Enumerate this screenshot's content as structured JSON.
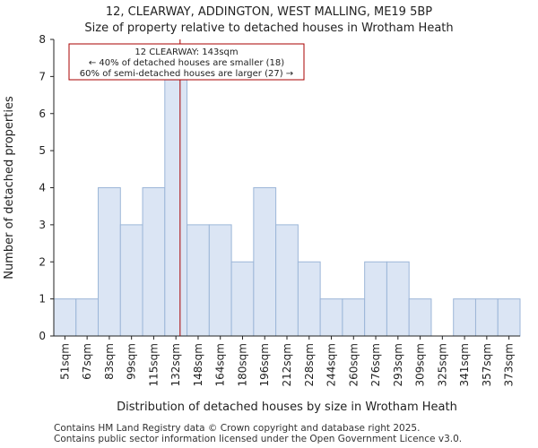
{
  "chart_data": {
    "type": "bar",
    "title_line1": "12, CLEARWAY, ADDINGTON, WEST MALLING, ME19 5BP",
    "title_line2": "Size of property relative to detached houses in Wrotham Heath",
    "xlabel": "Distribution of detached houses by size in Wrotham Heath",
    "ylabel": "Number of detached properties",
    "categories": [
      "51sqm",
      "67sqm",
      "83sqm",
      "99sqm",
      "115sqm",
      "132sqm",
      "148sqm",
      "164sqm",
      "180sqm",
      "196sqm",
      "212sqm",
      "228sqm",
      "244sqm",
      "260sqm",
      "276sqm",
      "293sqm",
      "309sqm",
      "325sqm",
      "341sqm",
      "357sqm",
      "373sqm"
    ],
    "bin_edges": [
      51,
      67,
      83,
      99,
      115,
      132,
      148,
      164,
      180,
      196,
      212,
      228,
      244,
      260,
      276,
      293,
      309,
      325,
      341,
      357,
      373,
      389
    ],
    "values": [
      1,
      1,
      4,
      3,
      4,
      7,
      3,
      3,
      2,
      4,
      3,
      2,
      1,
      1,
      2,
      2,
      1,
      0,
      1,
      1,
      1
    ],
    "ylim": [
      0,
      8
    ],
    "yticks": [
      0,
      1,
      2,
      3,
      4,
      5,
      6,
      7,
      8
    ],
    "marker_value": 143,
    "bar_fill": "#dbe5f4",
    "bar_edge": "#9cb6d8",
    "marker_color": "#aa0000",
    "annotation": {
      "line1": "12 CLEARWAY: 143sqm",
      "line2": "← 40% of detached houses are smaller (18)",
      "line3": "60% of semi-detached houses are larger (27) →"
    }
  },
  "footer": {
    "line1": "Contains HM Land Registry data © Crown copyright and database right 2025.",
    "line2": "Contains public sector information licensed under the Open Government Licence v3.0."
  }
}
